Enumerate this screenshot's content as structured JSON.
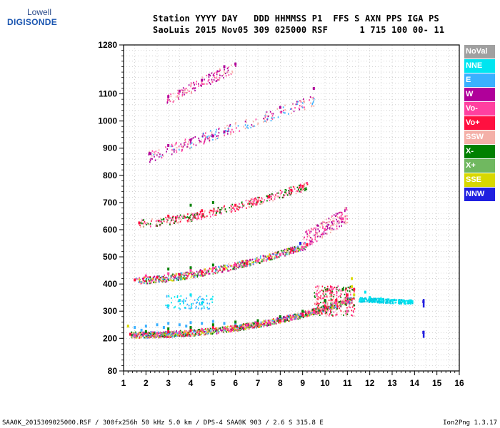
{
  "logo": {
    "line1": "Lowell",
    "line2": "DIGISONDE"
  },
  "header": {
    "line1": "Station YYYY DAY   DDD HHMMSS P1  FFS S AXN PPS IGA PS",
    "line2": "SaoLuis 2015 Nov05 309 025000 RSF      1 715 100 00- 11"
  },
  "legend": [
    {
      "label": "NoVal",
      "color": "#a0a0a0"
    },
    {
      "label": "NNE",
      "color": "#00e5f0"
    },
    {
      "label": "E",
      "color": "#3ab0ff"
    },
    {
      "label": "W",
      "color": "#b0009a"
    },
    {
      "label": "Vo-",
      "color": "#ff40a0"
    },
    {
      "label": "Vo+",
      "color": "#ff1040"
    },
    {
      "label": "SSW",
      "color": "#f4b0a8"
    },
    {
      "label": "X-",
      "color": "#008000"
    },
    {
      "label": "X+",
      "color": "#70b860"
    },
    {
      "label": "SSE",
      "color": "#d8d800"
    },
    {
      "label": "NNW",
      "color": "#2020e0"
    }
  ],
  "footer": {
    "left": "SAA0K_2015309025000.RSF / 300fx256h 50 kHz 5.0 km / DPS-4 SAA0K 903 / 2.6 S 315.8 E",
    "right": "Ion2Png 1.3.17"
  },
  "chart_data": {
    "type": "scatter",
    "x_ticks": [
      1,
      2,
      3,
      4,
      5,
      6,
      7,
      8,
      9,
      10,
      11,
      12,
      13,
      14,
      15,
      16
    ],
    "y_ticks": [
      80,
      200,
      300,
      400,
      500,
      600,
      700,
      800,
      900,
      1000,
      1100,
      1280
    ],
    "xlim": [
      1,
      16
    ],
    "ylim": [
      80,
      1280
    ],
    "grid": true,
    "legend_position": "right",
    "series": [
      {
        "name": "E",
        "color": "#3ab0ff",
        "points": [
          [
            1.5,
            240
          ],
          [
            2.0,
            245
          ],
          [
            2.5,
            250
          ],
          [
            3.0,
            255
          ],
          [
            3.5,
            250
          ],
          [
            4.0,
            258
          ],
          [
            4.5,
            255
          ],
          [
            5.0,
            262
          ],
          [
            5.5,
            255
          ],
          [
            6.0,
            250
          ],
          [
            1.8,
            230
          ],
          [
            2.8,
            240
          ],
          [
            3.8,
            245
          ]
        ]
      },
      {
        "name": "NNE",
        "color": "#00e5f0",
        "points": [
          [
            3.0,
            320
          ],
          [
            3.5,
            340
          ],
          [
            4.0,
            360
          ],
          [
            4.5,
            330
          ],
          [
            11.6,
            345
          ],
          [
            12.0,
            350
          ],
          [
            12.5,
            345
          ],
          [
            13.0,
            340
          ],
          [
            13.5,
            338
          ],
          [
            13.9,
            335
          ],
          [
            11.8,
            370
          ]
        ]
      },
      {
        "name": "Vo+",
        "color": "#ff1040",
        "points": [
          [
            1.3,
            215
          ],
          [
            2,
            220
          ],
          [
            3,
            225
          ],
          [
            4,
            230
          ],
          [
            5,
            240
          ],
          [
            6,
            245
          ],
          [
            7,
            255
          ],
          [
            8,
            265
          ],
          [
            9,
            285
          ],
          [
            9.5,
            300
          ],
          [
            10,
            320
          ],
          [
            10.5,
            340
          ],
          [
            11,
            360
          ],
          [
            11.3,
            380
          ],
          [
            1.5,
            415
          ],
          [
            2.5,
            425
          ],
          [
            3.5,
            435
          ],
          [
            4.5,
            445
          ],
          [
            5.5,
            455
          ],
          [
            6.5,
            475
          ],
          [
            7.5,
            495
          ],
          [
            8.5,
            525
          ],
          [
            9.2,
            545
          ],
          [
            1.7,
            625
          ],
          [
            3,
            650
          ],
          [
            4.5,
            670
          ],
          [
            6,
            690
          ],
          [
            7.5,
            720
          ],
          [
            8.5,
            745
          ],
          [
            9,
            760
          ]
        ]
      },
      {
        "name": "Vo-",
        "color": "#ff40a0",
        "points": [
          [
            1.5,
            212
          ],
          [
            2.5,
            218
          ],
          [
            3.5,
            222
          ],
          [
            4.5,
            232
          ],
          [
            5.5,
            238
          ],
          [
            6.5,
            248
          ],
          [
            7.5,
            258
          ],
          [
            8.5,
            270
          ],
          [
            9.5,
            295
          ],
          [
            10.5,
            330
          ],
          [
            11,
            300
          ],
          [
            2,
            430
          ],
          [
            3,
            438
          ],
          [
            4,
            450
          ],
          [
            5,
            458
          ],
          [
            6,
            470
          ],
          [
            7,
            485
          ],
          [
            8,
            508
          ],
          [
            9,
            535
          ],
          [
            10,
            600
          ],
          [
            10.8,
            640
          ]
        ]
      },
      {
        "name": "X-",
        "color": "#008000",
        "points": [
          [
            2,
            225
          ],
          [
            3,
            235
          ],
          [
            4,
            240
          ],
          [
            5,
            250
          ],
          [
            6,
            260
          ],
          [
            7,
            265
          ],
          [
            8,
            280
          ],
          [
            9,
            300
          ],
          [
            10,
            340
          ],
          [
            10.8,
            380
          ],
          [
            3,
            455
          ],
          [
            4,
            460
          ],
          [
            5,
            470
          ],
          [
            4,
            690
          ],
          [
            5,
            700
          ]
        ]
      },
      {
        "name": "W",
        "color": "#b0009a",
        "points": [
          [
            2.2,
            880
          ],
          [
            3,
            910
          ],
          [
            4,
            930
          ],
          [
            5,
            945
          ],
          [
            5.5,
            960
          ],
          [
            8,
            1050
          ],
          [
            9.5,
            1120
          ],
          [
            3,
            1090
          ],
          [
            3.5,
            1110
          ],
          [
            4.5,
            1150
          ],
          [
            5.5,
            1200
          ],
          [
            6,
            1210
          ],
          [
            14.4,
            335
          ],
          [
            14.4,
            222
          ]
        ]
      },
      {
        "name": "SSE",
        "color": "#d8d800",
        "points": [
          [
            11.2,
            390
          ],
          [
            11.3,
            360
          ],
          [
            11.2,
            420
          ],
          [
            1.2,
            245
          ]
        ]
      },
      {
        "name": "NNW",
        "color": "#2020e0",
        "points": [
          [
            14.4,
            335
          ],
          [
            14.4,
            222
          ],
          [
            8.9,
            550
          ]
        ]
      }
    ]
  }
}
